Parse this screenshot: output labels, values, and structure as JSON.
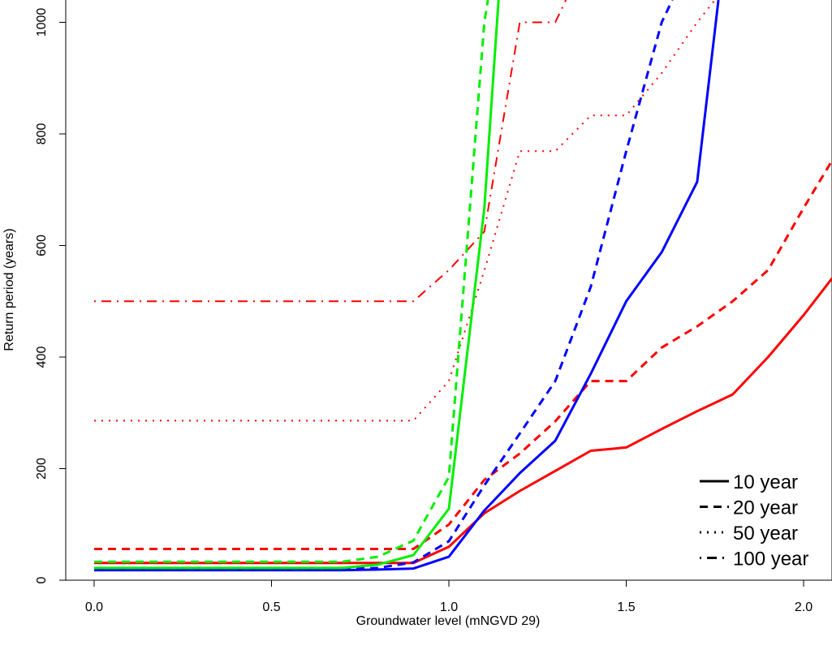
{
  "chart_data": {
    "type": "line",
    "title": "",
    "xlabel": "Groundwater level (mNGVD 29)",
    "ylabel": "Return period (years)",
    "xlim": [
      -0.08,
      2.08
    ],
    "ylim": [
      0,
      1040
    ],
    "x_ticks": [
      0.0,
      0.5,
      1.0,
      1.5,
      2.0
    ],
    "x_tick_labels": [
      "0.0",
      "0.5",
      "1.0",
      "1.5",
      "2.0"
    ],
    "y_ticks": [
      0,
      200,
      400,
      600,
      800,
      1000
    ],
    "y_tick_labels": [
      "0",
      "200",
      "400",
      "600",
      "800",
      "1000"
    ],
    "grid": false,
    "legend": {
      "position": "bottom-right",
      "entries": [
        {
          "label": "10 year",
          "style": "solid"
        },
        {
          "label": "20 year",
          "style": "dashed"
        },
        {
          "label": "50 year",
          "style": "dotted"
        },
        {
          "label": "100 year",
          "style": "dotdash"
        }
      ]
    },
    "series": [
      {
        "color": "#ff0000",
        "style": "solid",
        "x": [
          0,
          0.1,
          0.2,
          0.3,
          0.4,
          0.5,
          0.6,
          0.7,
          0.8,
          0.9,
          1.0,
          1.1,
          1.2,
          1.3,
          1.4,
          1.5,
          1.6,
          1.7,
          1.8,
          1.9,
          2.0,
          2.08
        ],
        "y": [
          31,
          31,
          31,
          31,
          31,
          31,
          31,
          31,
          31,
          31,
          60,
          120,
          160,
          196,
          232,
          238,
          271,
          303,
          333,
          400,
          475,
          541
        ]
      },
      {
        "color": "#ff0000",
        "style": "dashed",
        "x": [
          0,
          0.1,
          0.2,
          0.3,
          0.4,
          0.5,
          0.6,
          0.7,
          0.8,
          0.9,
          1.0,
          1.1,
          1.2,
          1.3,
          1.4,
          1.5,
          1.6,
          1.7,
          1.8,
          1.9,
          2.0,
          2.08
        ],
        "y": [
          56,
          56,
          56,
          56,
          56,
          56,
          56,
          56,
          56,
          56,
          100,
          180,
          227,
          285,
          357,
          357,
          417,
          455,
          500,
          556,
          667,
          752
        ]
      },
      {
        "color": "#ff0000",
        "style": "dotted",
        "x": [
          0,
          0.1,
          0.2,
          0.3,
          0.4,
          0.5,
          0.6,
          0.7,
          0.8,
          0.9,
          1.0,
          1.1,
          1.2,
          1.3,
          1.4,
          1.5,
          1.6,
          1.7,
          1.75
        ],
        "y": [
          286,
          286,
          286,
          286,
          286,
          286,
          286,
          286,
          286,
          286,
          357,
          555,
          769,
          769,
          833,
          833,
          909,
          1000,
          1040
        ]
      },
      {
        "color": "#ff0000",
        "style": "dotdash",
        "x": [
          0,
          0.1,
          0.2,
          0.3,
          0.4,
          0.5,
          0.6,
          0.7,
          0.8,
          0.9,
          1.0,
          1.1,
          1.2,
          1.3,
          1.33
        ],
        "y": [
          500,
          500,
          500,
          500,
          500,
          500,
          500,
          500,
          500,
          500,
          556,
          625,
          1000,
          1000,
          1040
        ]
      },
      {
        "color": "#0000ff",
        "style": "solid",
        "x": [
          0,
          0.1,
          0.2,
          0.3,
          0.4,
          0.5,
          0.6,
          0.7,
          0.8,
          0.9,
          1.0,
          1.1,
          1.2,
          1.3,
          1.4,
          1.5,
          1.6,
          1.7,
          1.76
        ],
        "y": [
          18,
          18,
          18,
          18,
          18,
          18,
          18,
          18,
          19,
          21,
          42,
          125,
          192,
          250,
          370,
          500,
          588,
          714,
          1040
        ]
      },
      {
        "color": "#0000ff",
        "style": "dashed",
        "x": [
          0,
          0.1,
          0.2,
          0.3,
          0.4,
          0.5,
          0.6,
          0.7,
          0.8,
          0.9,
          1.0,
          1.1,
          1.2,
          1.3,
          1.4,
          1.5,
          1.6,
          1.63
        ],
        "y": [
          20,
          20,
          20,
          20,
          20,
          20,
          20,
          20,
          22,
          32,
          70,
          170,
          263,
          357,
          526,
          769,
          1000,
          1040
        ]
      },
      {
        "color": "#00ee00",
        "style": "solid",
        "x": [
          0,
          0.1,
          0.2,
          0.3,
          0.4,
          0.5,
          0.6,
          0.7,
          0.8,
          0.9,
          1.0,
          1.1,
          1.14
        ],
        "y": [
          22,
          22,
          22,
          22,
          22,
          22,
          22,
          22,
          28,
          45,
          128,
          667,
          1040
        ]
      },
      {
        "color": "#00ee00",
        "style": "dashed",
        "x": [
          0,
          0.1,
          0.2,
          0.3,
          0.4,
          0.5,
          0.6,
          0.7,
          0.8,
          0.9,
          1.0,
          1.1,
          1.11
        ],
        "y": [
          33,
          33,
          33,
          33,
          33,
          33,
          33,
          33,
          42,
          71,
          185,
          1000,
          1040
        ]
      }
    ]
  }
}
